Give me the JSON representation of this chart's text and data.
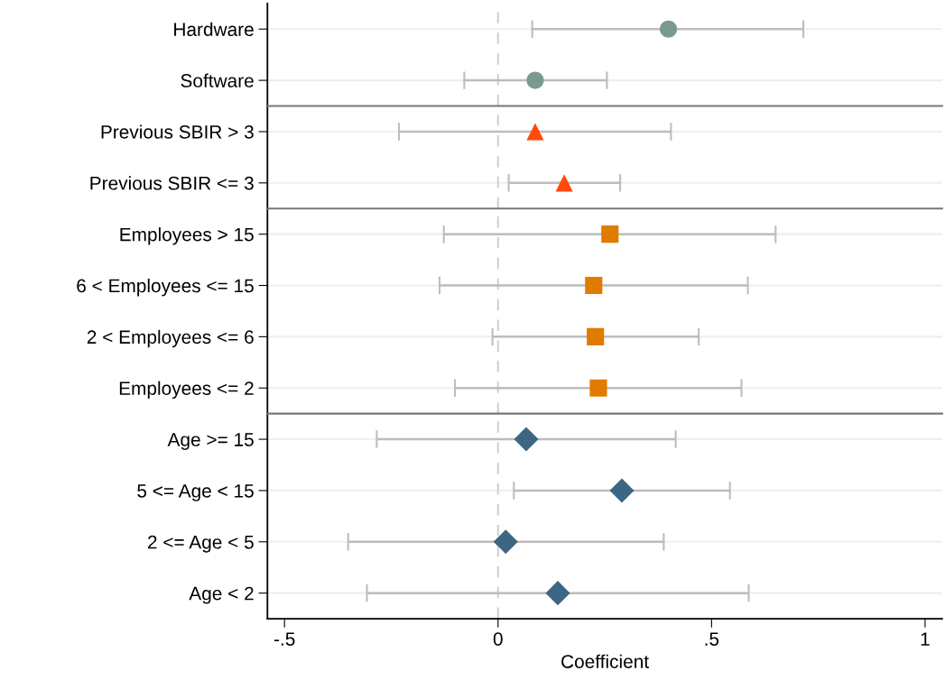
{
  "chart_data": [
    {
      "type": "scatter",
      "orientation": "horizontal",
      "categories": [
        "Hardware",
        "Software"
      ],
      "values": [
        0.399,
        0.087
      ],
      "errors": [
        [
          0.08,
          0.715
        ],
        [
          -0.079,
          0.255
        ]
      ],
      "color": "#7a9a8e",
      "marker": "circle",
      "xlim": [
        -0.54,
        1.04
      ],
      "tick_labels": "y",
      "grid": "y",
      "ref_lines": [
        {
          "axis": "x",
          "value": 0,
          "color": "#d0d0d0",
          "line_style": "dashed"
        }
      ]
    },
    {
      "type": "scatter",
      "orientation": "horizontal",
      "categories": [
        "Previous SBIR > 3",
        "Previous SBIR <= 3"
      ],
      "values": [
        0.087,
        0.155
      ],
      "errors": [
        [
          -0.232,
          0.405
        ],
        [
          0.025,
          0.286
        ]
      ],
      "color": "#ff4a0a",
      "marker": "triangle",
      "xlim": [
        -0.54,
        1.04
      ],
      "tick_labels": "y",
      "grid": "y",
      "ref_lines": [
        {
          "axis": "x",
          "value": 0,
          "color": "#d0d0d0",
          "line_style": "dashed"
        }
      ]
    },
    {
      "type": "scatter",
      "orientation": "horizontal",
      "categories": [
        "Employees > 15",
        "6 < Employees <= 15",
        "2 < Employees <= 6",
        "Employees <= 2"
      ],
      "values": [
        0.262,
        0.224,
        0.228,
        0.235
      ],
      "errors": [
        [
          -0.127,
          0.65
        ],
        [
          -0.137,
          0.585
        ],
        [
          -0.013,
          0.47
        ],
        [
          -0.101,
          0.57
        ]
      ],
      "color": "#e07b00",
      "marker": "square",
      "xlim": [
        -0.54,
        1.04
      ],
      "tick_labels": "y",
      "grid": "y",
      "ref_lines": [
        {
          "axis": "x",
          "value": 0,
          "color": "#d0d0d0",
          "line_style": "dashed"
        }
      ]
    },
    {
      "type": "scatter",
      "orientation": "horizontal",
      "categories": [
        "Age >= 15",
        "5 <= Age < 15",
        "2 <= Age < 5",
        "Age < 2"
      ],
      "values": [
        0.066,
        0.29,
        0.018,
        0.14
      ],
      "errors": [
        [
          -0.284,
          0.416
        ],
        [
          0.037,
          0.543
        ],
        [
          -0.351,
          0.388
        ],
        [
          -0.307,
          0.587
        ]
      ],
      "color": "#3d6682",
      "marker": "diamond",
      "xlabel": "Coefficient",
      "xlim": [
        -0.54,
        1.04
      ],
      "xticks": [
        {
          "value": -0.5,
          "label": "-.5"
        },
        0,
        {
          "value": 0.5,
          "label": ".5"
        },
        1
      ],
      "grid": "y",
      "ref_lines": [
        {
          "axis": "x",
          "value": 0,
          "color": "#d0d0d0",
          "line_style": "dashed"
        }
      ]
    }
  ]
}
